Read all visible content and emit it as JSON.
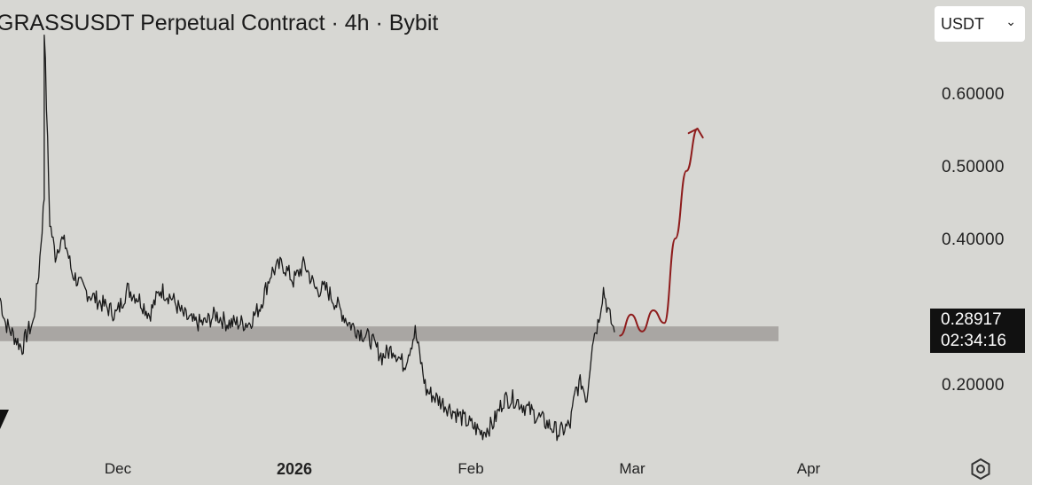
{
  "header": {
    "title": "GRASSUSDT Perpetual Contract · 4h · Bybit",
    "currency": "USDT"
  },
  "price_label": {
    "price": "0.28917",
    "countdown": "02:34:16"
  },
  "y_ticks": [
    "0.60000",
    "0.50000",
    "0.40000",
    "0.20000"
  ],
  "x_ticks": [
    {
      "label": "Dec",
      "bold": false
    },
    {
      "label": "2026",
      "bold": true
    },
    {
      "label": "Feb",
      "bold": false
    },
    {
      "label": "Mar",
      "bold": false
    },
    {
      "label": "Apr",
      "bold": false
    }
  ],
  "colors": {
    "background": "#d7d7d3",
    "price_line": "#1a1a1a",
    "support_zone": "#a9a6a3",
    "projection": "#8e1c1c"
  },
  "chart_data": {
    "type": "line",
    "symbol": "GRASSUSDT",
    "interval": "4h",
    "exchange": "Bybit",
    "ylim": [
      0.145,
      0.675
    ],
    "x_range": [
      "2025-11-15",
      "2026-04-20"
    ],
    "series": [
      {
        "x": [
          "2025-11-15",
          "2025-11-16",
          "2025-11-17",
          "2025-11-18",
          "2025-11-19",
          "2025-11-20",
          "2025-11-21",
          "2025-11-22",
          "2025-11-23",
          "2025-11-23",
          "2025-11-24",
          "2025-11-25",
          "2025-11-26",
          "2025-11-27",
          "2025-11-28",
          "2025-11-29",
          "2025-11-30",
          "2025-12-02",
          "2025-12-04",
          "2025-12-06",
          "2025-12-08",
          "2025-12-10",
          "2025-12-12",
          "2025-12-14",
          "2025-12-16",
          "2025-12-18",
          "2025-12-20",
          "2025-12-22",
          "2025-12-24",
          "2025-12-26",
          "2025-12-28",
          "2025-12-30",
          "2026-01-01",
          "2026-01-03",
          "2026-01-05",
          "2026-01-07",
          "2026-01-09",
          "2026-01-11",
          "2026-01-13",
          "2026-01-15",
          "2026-01-17",
          "2026-01-19",
          "2026-01-21",
          "2026-01-23",
          "2026-01-25",
          "2026-01-27",
          "2026-01-29",
          "2026-01-31",
          "2026-02-02",
          "2026-02-04",
          "2026-02-06",
          "2026-02-08",
          "2026-02-10",
          "2026-02-12",
          "2026-02-14",
          "2026-02-16",
          "2026-02-18",
          "2026-02-20",
          "2026-02-22",
          "2026-02-24",
          "2026-02-26",
          "2026-02-27",
          "2026-02-28",
          "2026-03-01",
          "2026-03-02",
          "2026-03-03",
          "2026-03-04",
          "2026-03-05",
          "2026-03-06"
        ],
        "values": [
          0.33,
          0.3,
          0.29,
          0.28,
          0.27,
          0.29,
          0.3,
          0.36,
          0.45,
          0.65,
          0.42,
          0.38,
          0.4,
          0.39,
          0.36,
          0.35,
          0.34,
          0.33,
          0.32,
          0.31,
          0.34,
          0.33,
          0.31,
          0.34,
          0.33,
          0.31,
          0.3,
          0.3,
          0.31,
          0.3,
          0.3,
          0.3,
          0.32,
          0.36,
          0.37,
          0.35,
          0.37,
          0.34,
          0.34,
          0.32,
          0.3,
          0.29,
          0.28,
          0.26,
          0.27,
          0.25,
          0.29,
          0.22,
          0.21,
          0.2,
          0.19,
          0.18,
          0.17,
          0.18,
          0.21,
          0.21,
          0.2,
          0.19,
          0.18,
          0.17,
          0.18,
          0.22,
          0.23,
          0.21,
          0.28,
          0.3,
          0.34,
          0.31,
          0.289
        ]
      }
    ],
    "support_zone": [
      0.2785,
      0.296
    ],
    "projection": {
      "x": [
        "2026-03-07",
        "2026-03-09",
        "2026-03-11",
        "2026-03-13",
        "2026-03-15",
        "2026-03-17",
        "2026-03-19",
        "2026-03-21"
      ],
      "values": [
        0.285,
        0.31,
        0.29,
        0.315,
        0.3,
        0.4,
        0.48,
        0.53
      ]
    },
    "grid": false,
    "legend": "none"
  }
}
